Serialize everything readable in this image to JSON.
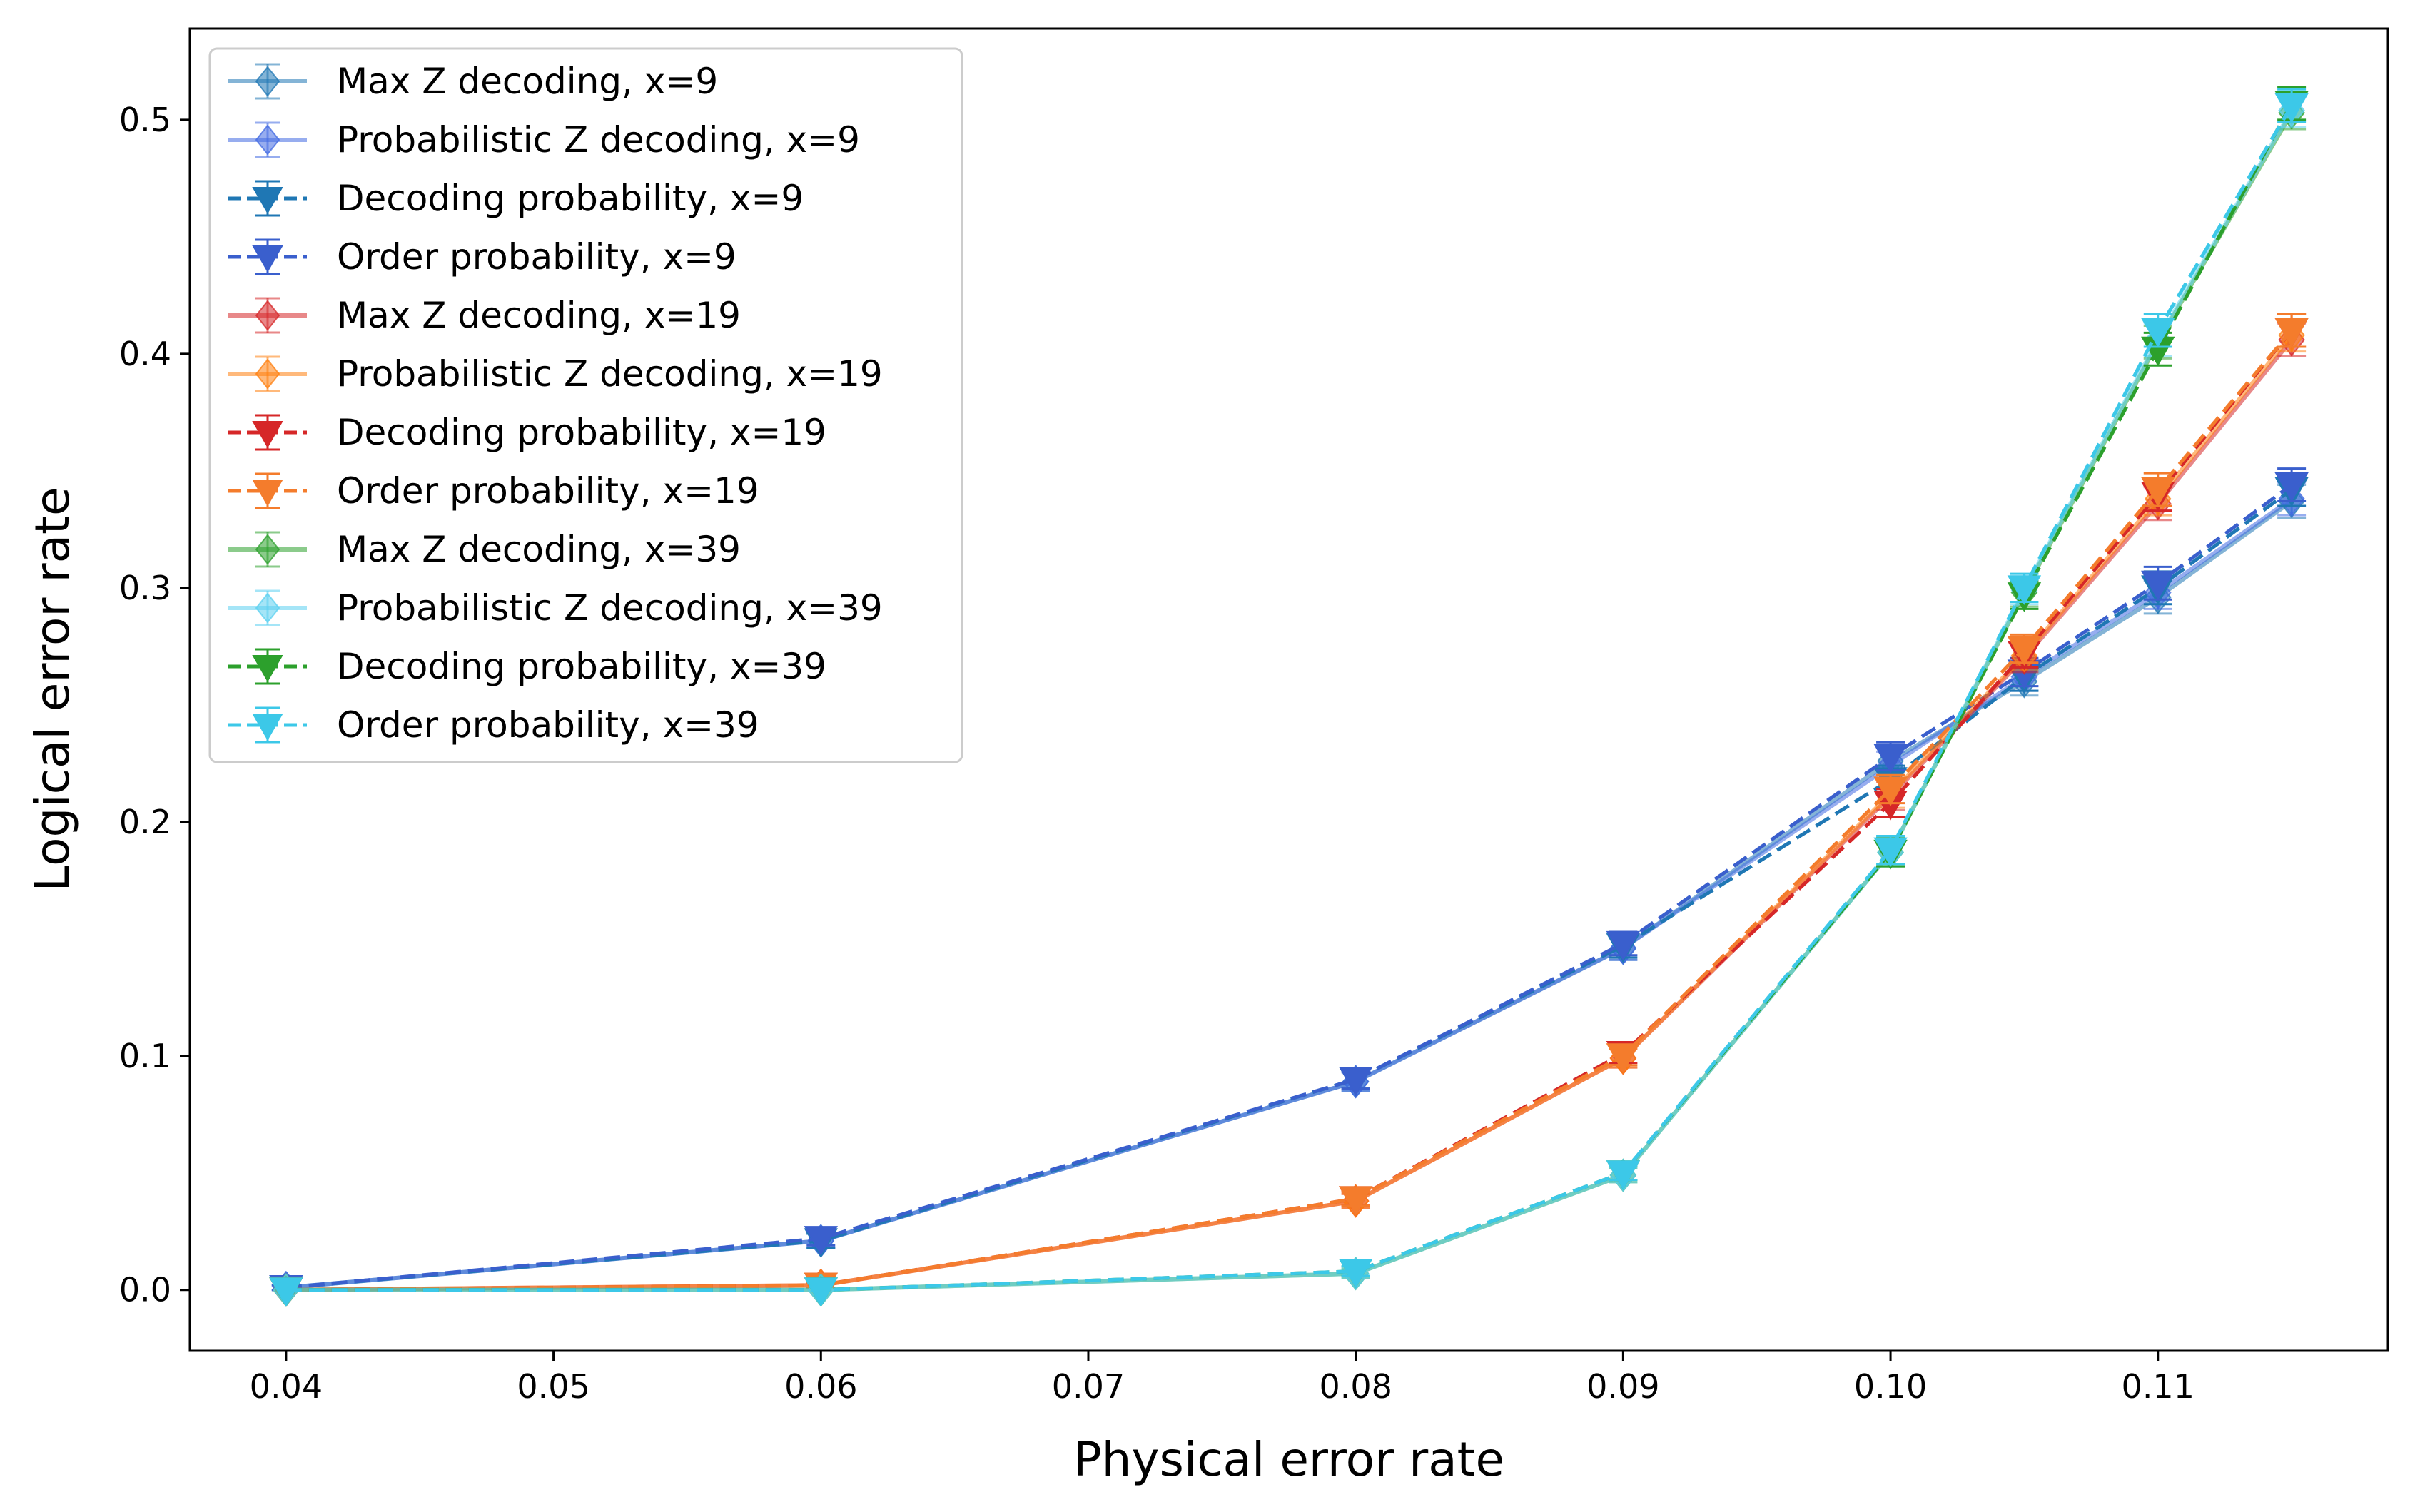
{
  "chart_data": {
    "type": "line",
    "xlabel": "Physical error rate",
    "ylabel": "Logical error rate",
    "xlim": [
      0.0364,
      0.1186
    ],
    "ylim": [
      -0.026,
      0.539
    ],
    "xticks": [
      0.04,
      0.05,
      0.06,
      0.07,
      0.08,
      0.09,
      0.1,
      0.11
    ],
    "xtick_labels": [
      "0.04",
      "0.05",
      "0.06",
      "0.07",
      "0.08",
      "0.09",
      "0.10",
      "0.11"
    ],
    "yticks": [
      0.0,
      0.1,
      0.2,
      0.3,
      0.4,
      0.5
    ],
    "ytick_labels": [
      "0.0",
      "0.1",
      "0.2",
      "0.3",
      "0.4",
      "0.5"
    ],
    "grid": false,
    "legend_position": "upper-left",
    "x": [
      0.04,
      0.06,
      0.08,
      0.09,
      0.1,
      0.105,
      0.11,
      0.115
    ],
    "series": [
      {
        "name": "Max Z decoding, x=9",
        "color": "#1f77b4",
        "marker": "diamond",
        "linestyle": "solid",
        "alpha": 0.55,
        "values": [
          0.001,
          0.021,
          0.089,
          0.146,
          0.226,
          0.26,
          0.296,
          0.337
        ],
        "errors": [
          0.001,
          0.003,
          0.004,
          0.005,
          0.006,
          0.006,
          0.007,
          0.007
        ]
      },
      {
        "name": "Probabilistic Z decoding, x=9",
        "color": "#4169e1",
        "marker": "diamond",
        "linestyle": "solid",
        "alpha": 0.55,
        "values": [
          0.001,
          0.021,
          0.089,
          0.146,
          0.224,
          0.262,
          0.298,
          0.338
        ],
        "errors": [
          0.001,
          0.003,
          0.004,
          0.005,
          0.006,
          0.006,
          0.007,
          0.007
        ]
      },
      {
        "name": "Decoding probability, x=9",
        "color": "#1f77b4",
        "marker": "triangle-down",
        "linestyle": "dashed",
        "alpha": 1.0,
        "values": [
          0.001,
          0.021,
          0.09,
          0.147,
          0.218,
          0.262,
          0.3,
          0.342
        ],
        "errors": [
          0.001,
          0.003,
          0.004,
          0.005,
          0.006,
          0.006,
          0.007,
          0.007
        ]
      },
      {
        "name": "Order probability, x=9",
        "color": "#3a5fcd",
        "marker": "triangle-down",
        "linestyle": "dashed",
        "alpha": 1.0,
        "values": [
          0.001,
          0.022,
          0.09,
          0.148,
          0.228,
          0.264,
          0.302,
          0.344
        ],
        "errors": [
          0.001,
          0.003,
          0.004,
          0.005,
          0.006,
          0.006,
          0.007,
          0.007
        ]
      },
      {
        "name": "Max Z decoding, x=19",
        "color": "#d62728",
        "marker": "diamond",
        "linestyle": "solid",
        "alpha": 0.55,
        "values": [
          0.0,
          0.002,
          0.038,
          0.099,
          0.211,
          0.27,
          0.336,
          0.406
        ],
        "errors": [
          0.0,
          0.001,
          0.003,
          0.004,
          0.006,
          0.006,
          0.007,
          0.007
        ]
      },
      {
        "name": "Probabilistic Z decoding, x=19",
        "color": "#ff7f0e",
        "marker": "diamond",
        "linestyle": "solid",
        "alpha": 0.55,
        "values": [
          0.0,
          0.002,
          0.038,
          0.099,
          0.212,
          0.271,
          0.338,
          0.408
        ],
        "errors": [
          0.0,
          0.001,
          0.003,
          0.004,
          0.006,
          0.006,
          0.007,
          0.007
        ]
      },
      {
        "name": "Decoding probability, x=19",
        "color": "#d62728",
        "marker": "triangle-down",
        "linestyle": "dashed",
        "alpha": 1.0,
        "values": [
          0.0,
          0.002,
          0.039,
          0.101,
          0.208,
          0.272,
          0.34,
          0.41
        ],
        "errors": [
          0.0,
          0.001,
          0.003,
          0.004,
          0.006,
          0.006,
          0.007,
          0.007
        ]
      },
      {
        "name": "Order probability, x=19",
        "color": "#f47c2c",
        "marker": "triangle-down",
        "linestyle": "dashed",
        "alpha": 1.0,
        "values": [
          0.0,
          0.002,
          0.039,
          0.1,
          0.214,
          0.274,
          0.342,
          0.41
        ],
        "errors": [
          0.0,
          0.001,
          0.003,
          0.004,
          0.006,
          0.006,
          0.007,
          0.007
        ]
      },
      {
        "name": "Max Z decoding, x=39",
        "color": "#2ca02c",
        "marker": "diamond",
        "linestyle": "solid",
        "alpha": 0.55,
        "values": [
          0.0,
          0.0,
          0.007,
          0.049,
          0.187,
          0.298,
          0.405,
          0.503
        ],
        "errors": [
          0.0,
          0.0,
          0.002,
          0.003,
          0.006,
          0.006,
          0.007,
          0.007
        ]
      },
      {
        "name": "Probabilistic Z decoding, x=39",
        "color": "#5bd0f0",
        "marker": "diamond",
        "linestyle": "solid",
        "alpha": 0.55,
        "values": [
          0.0,
          0.0,
          0.007,
          0.049,
          0.187,
          0.299,
          0.406,
          0.504
        ],
        "errors": [
          0.0,
          0.0,
          0.002,
          0.003,
          0.006,
          0.006,
          0.007,
          0.007
        ]
      },
      {
        "name": "Decoding probability, x=39",
        "color": "#2ca02c",
        "marker": "triangle-down",
        "linestyle": "dashed",
        "alpha": 1.0,
        "values": [
          0.0,
          0.0,
          0.008,
          0.05,
          0.187,
          0.297,
          0.402,
          0.507
        ],
        "errors": [
          0.0,
          0.0,
          0.002,
          0.003,
          0.006,
          0.006,
          0.007,
          0.007
        ]
      },
      {
        "name": "Order probability, x=39",
        "color": "#3cc8e8",
        "marker": "triangle-down",
        "linestyle": "dashed",
        "alpha": 1.0,
        "values": [
          0.0,
          0.0,
          0.008,
          0.05,
          0.188,
          0.3,
          0.41,
          0.506
        ],
        "errors": [
          0.0,
          0.0,
          0.002,
          0.003,
          0.006,
          0.006,
          0.007,
          0.007
        ]
      }
    ]
  }
}
